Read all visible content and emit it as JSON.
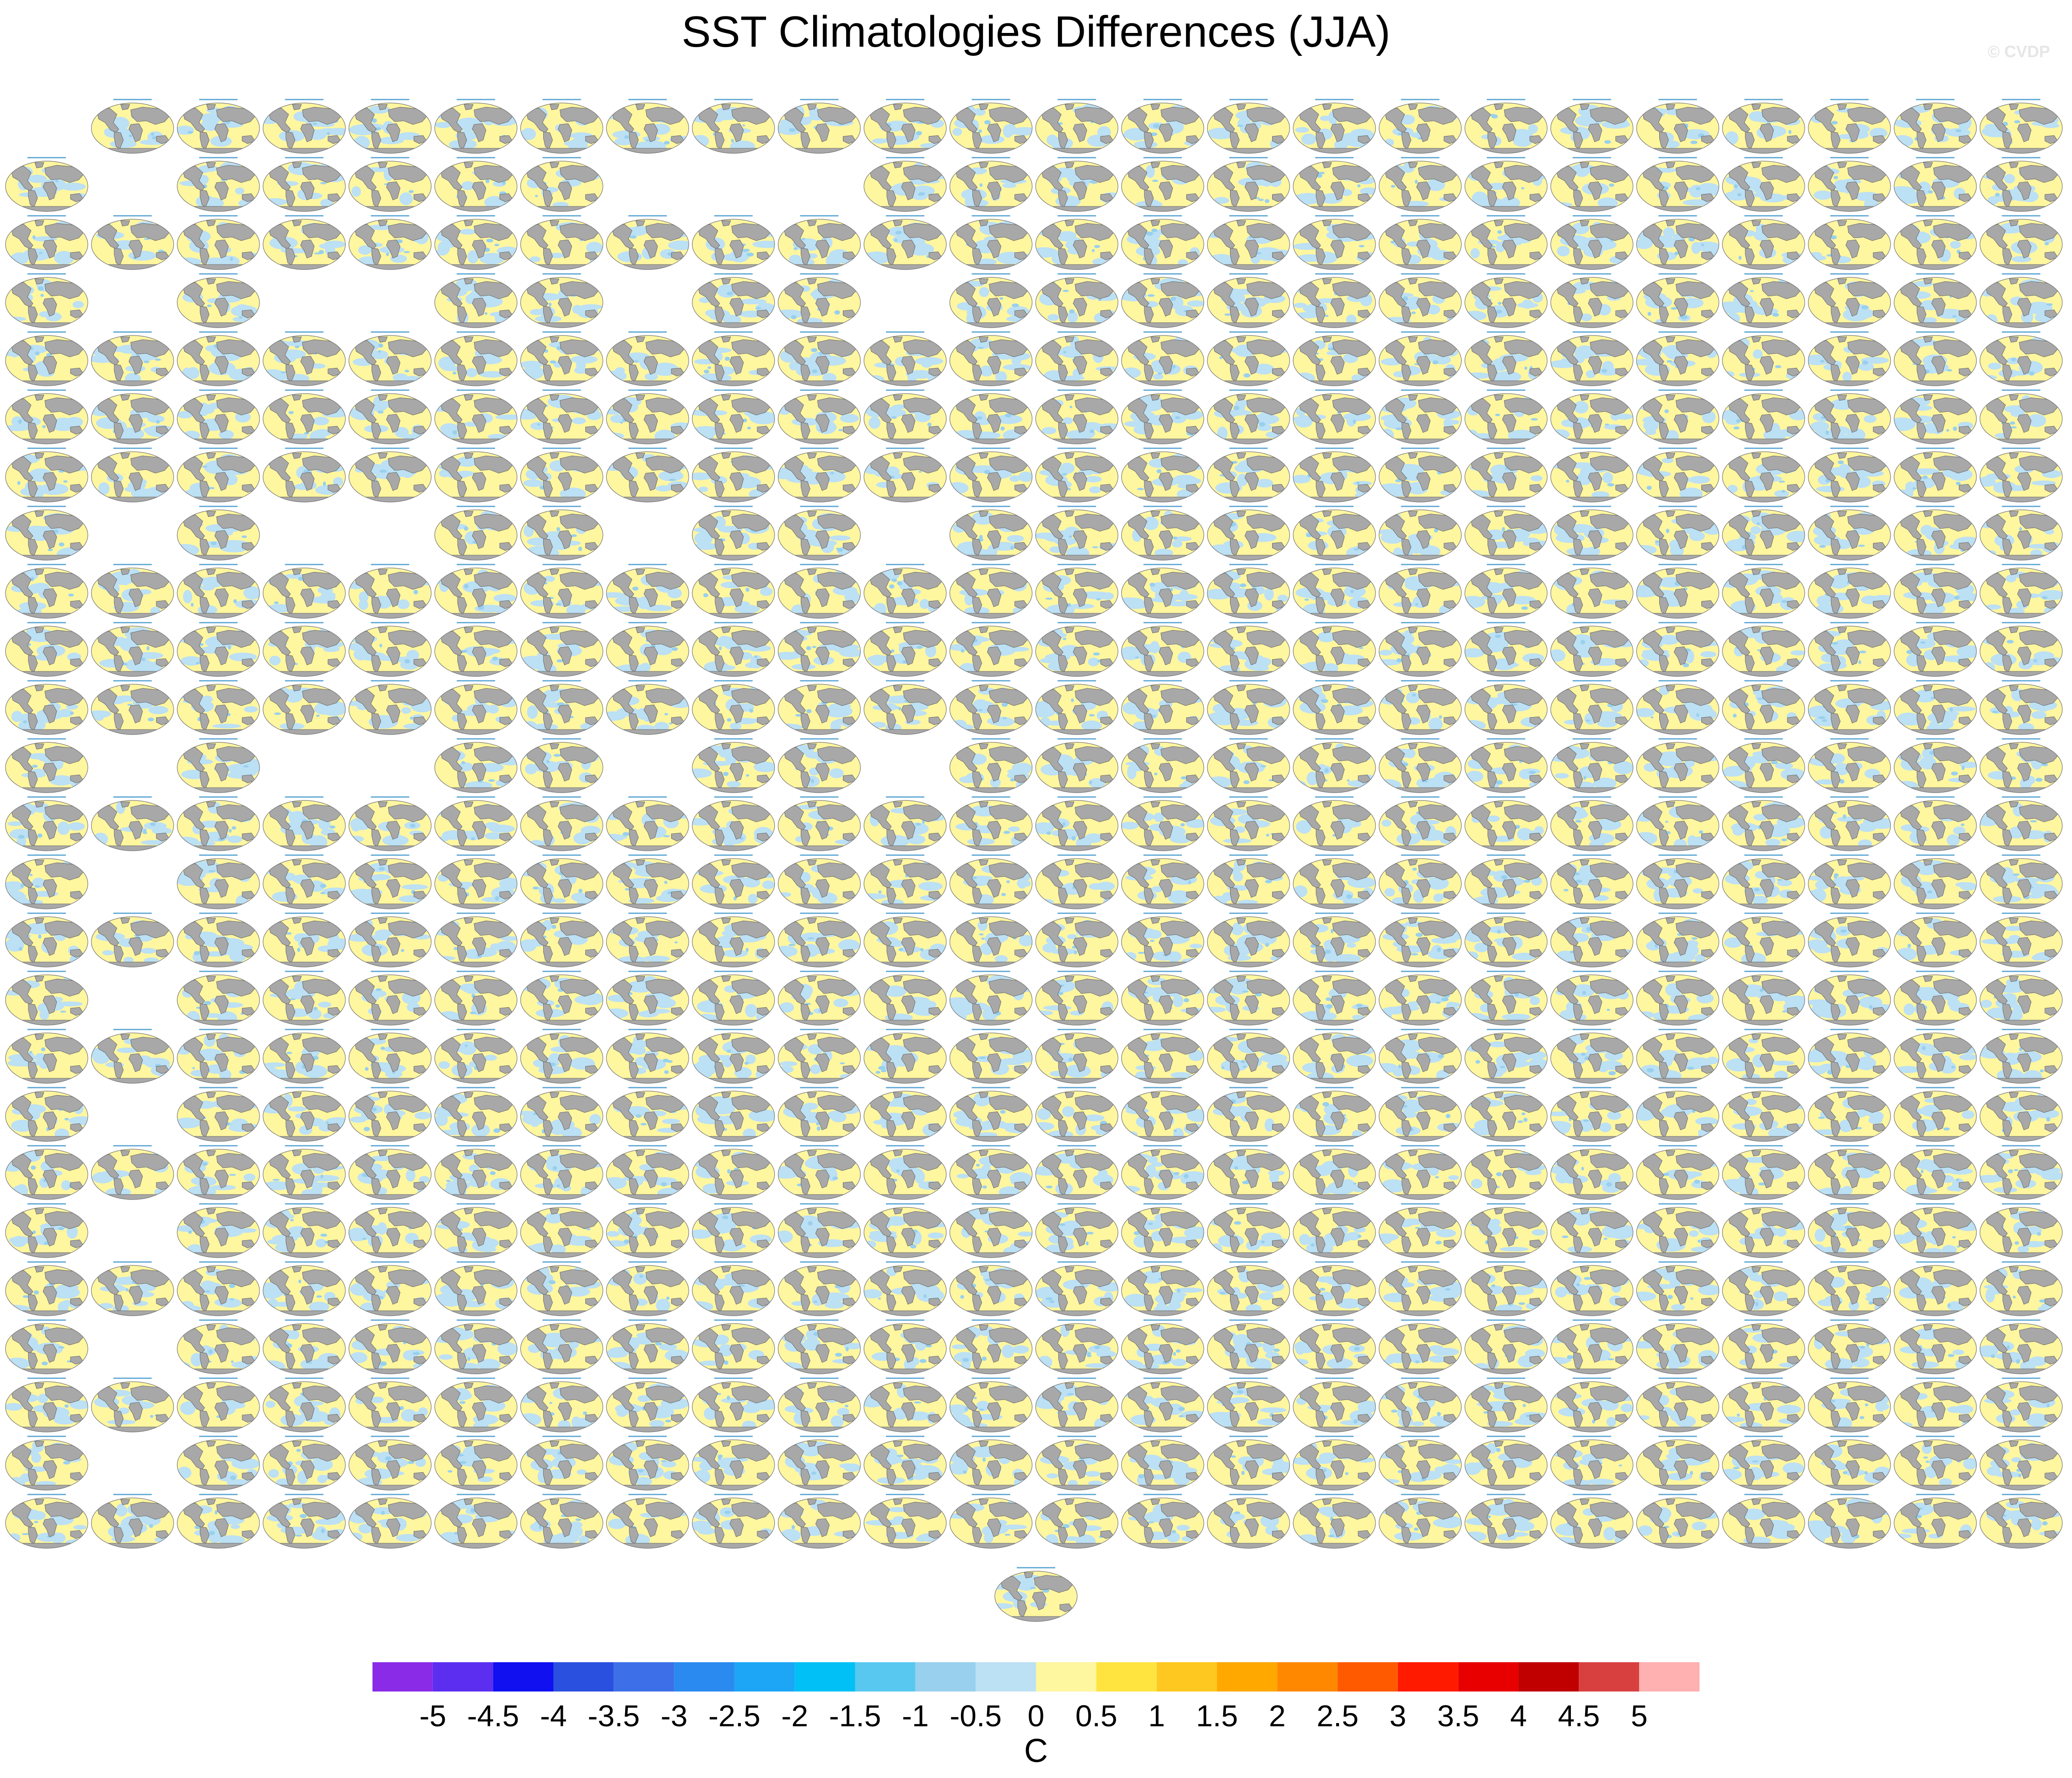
{
  "title": "SST Climatologies Differences (JJA)",
  "credit": "© CVDP",
  "panel_grid": {
    "rows": 25,
    "cols": 24,
    "missing": {
      "1": [
        1,
        7,
        8,
        9
      ],
      "3": [
        1,
        3,
        4,
        7,
        10
      ],
      "7": [
        1,
        3,
        4,
        7,
        10
      ],
      "11": [
        1,
        3,
        4,
        7,
        10
      ],
      "13": [
        1
      ],
      "15": [
        1
      ],
      "17": [
        1
      ],
      "19": [
        1
      ],
      "21": [
        1
      ],
      "23": [
        1
      ]
    },
    "row0_missing": [
      0
    ],
    "extra_bottom_panel": true
  },
  "colorbar": {
    "unit": "C",
    "labels": [
      "-5",
      "-4.5",
      "-4",
      "-3.5",
      "-3",
      "-2.5",
      "-2",
      "-1.5",
      "-1",
      "-0.5",
      "0",
      "0.5",
      "1",
      "1.5",
      "2",
      "2.5",
      "3",
      "3.5",
      "4",
      "4.5",
      "5"
    ],
    "colors": [
      "#8a2be8",
      "#5b2ef0",
      "#1010f0",
      "#2a50e0",
      "#3c6fe8",
      "#2a8af0",
      "#1ca6f5",
      "#00c0f5",
      "#58c8f0",
      "#98d0ee",
      "#bce0f4",
      "#fff6a0",
      "#ffe440",
      "#ffc820",
      "#ffa800",
      "#ff8800",
      "#ff5a00",
      "#ff1a00",
      "#e80000",
      "#c00000",
      "#d84040",
      "#ffb0b0"
    ]
  },
  "chart_data": {
    "type": "heatmap",
    "title": "SST Climatologies Differences (JJA)",
    "colorbar_unit": "C",
    "levels": [
      -5,
      -4.5,
      -4,
      -3.5,
      -3,
      -2.5,
      -2,
      -1.5,
      -1,
      -0.5,
      0,
      0.5,
      1,
      1.5,
      2,
      2.5,
      3,
      3.5,
      4,
      4.5,
      5
    ]
  }
}
